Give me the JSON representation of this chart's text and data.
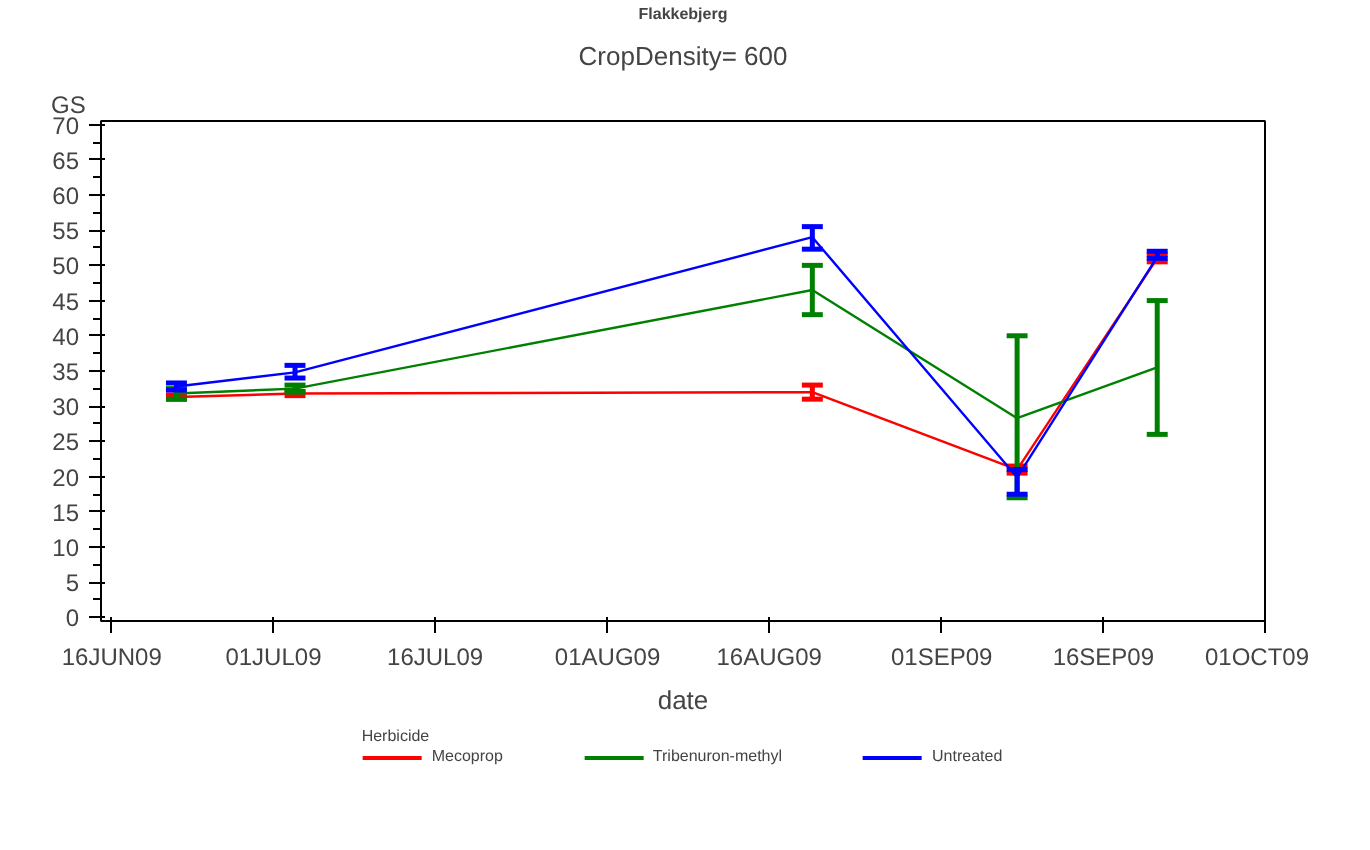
{
  "chart_data": {
    "type": "line",
    "title": "CropDensity= 600",
    "subtitle": "Flakkebjerg",
    "xlabel": "date",
    "ylabel": "GS",
    "legend_title": "Herbicide",
    "x": [
      "2009-06-22",
      "2009-07-03",
      "2009-08-20",
      "2009-09-08",
      "2009-09-21"
    ],
    "series": [
      {
        "name": "Mecoprop",
        "color": "#ff0000",
        "values": [
          31.3,
          31.8,
          32,
          21,
          51
        ],
        "errors": [
          [
            31,
            31.6
          ],
          [
            31.5,
            32.1
          ],
          [
            31,
            33
          ],
          [
            20.5,
            21.5
          ],
          [
            50.5,
            51.5
          ]
        ]
      },
      {
        "name": "Tribenuron-methyl",
        "color": "#008000",
        "values": [
          31.8,
          32.5,
          46.5,
          28.3,
          35.5
        ],
        "errors": [
          [
            31,
            32.5
          ],
          [
            32,
            33
          ],
          [
            43,
            50
          ],
          [
            17,
            40
          ],
          [
            26,
            45
          ]
        ]
      },
      {
        "name": "Untreated",
        "color": "#0000ff",
        "values": [
          32.8,
          34.8,
          54,
          19.9,
          51.2
        ],
        "errors": [
          [
            32.3,
            33.3
          ],
          [
            34,
            35.8
          ],
          [
            52.3,
            55.5
          ],
          [
            17.5,
            21
          ],
          [
            51,
            52
          ]
        ]
      }
    ],
    "xlim": [
      "2009-06-15",
      "2009-10-01"
    ],
    "ylim": [
      -0.5,
      70.5
    ],
    "xticks": [
      {
        "value": "2009-06-16",
        "label": "16JUN09"
      },
      {
        "value": "2009-07-01",
        "label": "01JUL09"
      },
      {
        "value": "2009-07-16",
        "label": "16JUL09"
      },
      {
        "value": "2009-08-01",
        "label": "01AUG09"
      },
      {
        "value": "2009-08-16",
        "label": "16AUG09"
      },
      {
        "value": "2009-09-01",
        "label": "01SEP09"
      },
      {
        "value": "2009-09-16",
        "label": "16SEP09"
      },
      {
        "value": "2009-10-01",
        "label": "01OCT09"
      }
    ],
    "yticks": [
      0,
      5,
      10,
      15,
      20,
      25,
      30,
      35,
      40,
      45,
      50,
      55,
      60,
      65,
      70
    ],
    "grid": false,
    "legend": "bottom",
    "marker": "none",
    "line_style": "solid"
  }
}
